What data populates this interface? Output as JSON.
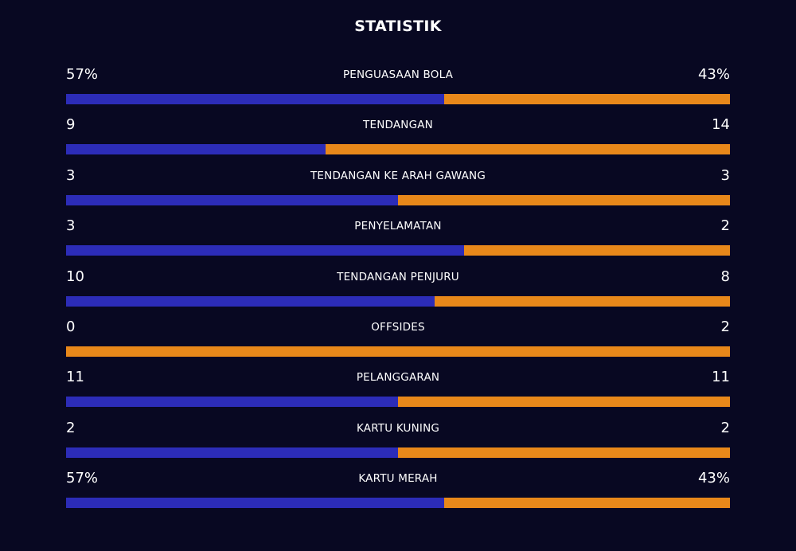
{
  "title": "STATISTIK",
  "colors": {
    "background": "#080822",
    "home": "#2c2cb8",
    "away": "#e8881a"
  },
  "stats": [
    {
      "label": "PENGUASAAN BOLA",
      "left": "57%",
      "right": "43%",
      "left_share": 0.57
    },
    {
      "label": "TENDANGAN",
      "left": "9",
      "right": "14",
      "left_share": 0.3913
    },
    {
      "label": "TENDANGAN KE ARAH GAWANG",
      "left": "3",
      "right": "3",
      "left_share": 0.5
    },
    {
      "label": "PENYELAMATAN",
      "left": "3",
      "right": "2",
      "left_share": 0.6
    },
    {
      "label": "TENDANGAN PENJURU",
      "left": "10",
      "right": "8",
      "left_share": 0.5556
    },
    {
      "label": "OFFSIDES",
      "left": "0",
      "right": "2",
      "left_share": 0.0
    },
    {
      "label": "PELANGGARAN",
      "left": "11",
      "right": "11",
      "left_share": 0.5
    },
    {
      "label": "KARTU KUNING",
      "left": "2",
      "right": "2",
      "left_share": 0.5
    },
    {
      "label": "KARTU MERAH",
      "left": "57%",
      "right": "43%",
      "left_share": 0.57
    }
  ]
}
